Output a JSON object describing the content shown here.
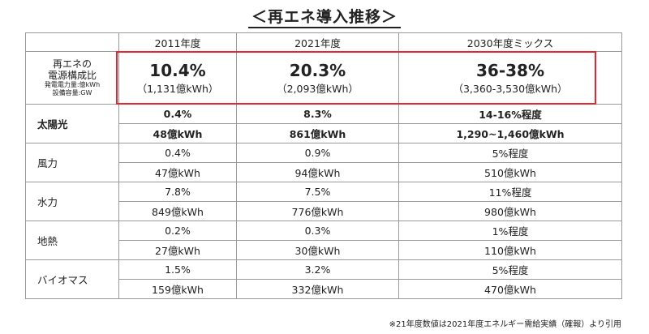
{
  "title": "＜再エネ導入推移＞",
  "columns": [
    "2011年度",
    "2021年度",
    "2030年度ミックス"
  ],
  "mix": {
    "label_line1": "再エネの",
    "label_line2": "電源構成比",
    "label_small1": "発電電力量:億kWh",
    "label_small2": "設備容量:GW",
    "values": [
      {
        "pct": "10.4%",
        "kwh": "（1,131億kWh）"
      },
      {
        "pct": "20.3%",
        "kwh": "（2,093億kWh）"
      },
      {
        "pct": "36-38%",
        "kwh": "（3,360-3,530億kWh）"
      }
    ]
  },
  "rows": [
    {
      "name": "太陽光",
      "pct": [
        "0.4%",
        "8.3%",
        "14-16%程度"
      ],
      "kwh": [
        "48億kWh",
        "861億kWh",
        "1,290~1,460億kWh"
      ]
    },
    {
      "name": "風力",
      "pct": [
        "0.4%",
        "0.9%",
        "5%程度"
      ],
      "kwh": [
        "47億kWh",
        "94億kWh",
        "510億kWh"
      ]
    },
    {
      "name": "水力",
      "pct": [
        "7.8%",
        "7.5%",
        "11%程度"
      ],
      "kwh": [
        "849億kWh",
        "776億kWh",
        "980億kWh"
      ]
    },
    {
      "name": "地熱",
      "pct": [
        "0.2%",
        "0.3%",
        "1%程度"
      ],
      "kwh": [
        "27億kWh",
        "30億kWh",
        "110億kWh"
      ]
    },
    {
      "name": "バイオマス",
      "pct": [
        "1.5%",
        "3.2%",
        "5%程度"
      ],
      "kwh": [
        "159億kWh",
        "332億kWh",
        "470億kWh"
      ]
    }
  ],
  "note": "※21年度数値は2021年度エネルギー需給実績（確報）より引用",
  "colors": {
    "highlight": "#e3282c"
  }
}
